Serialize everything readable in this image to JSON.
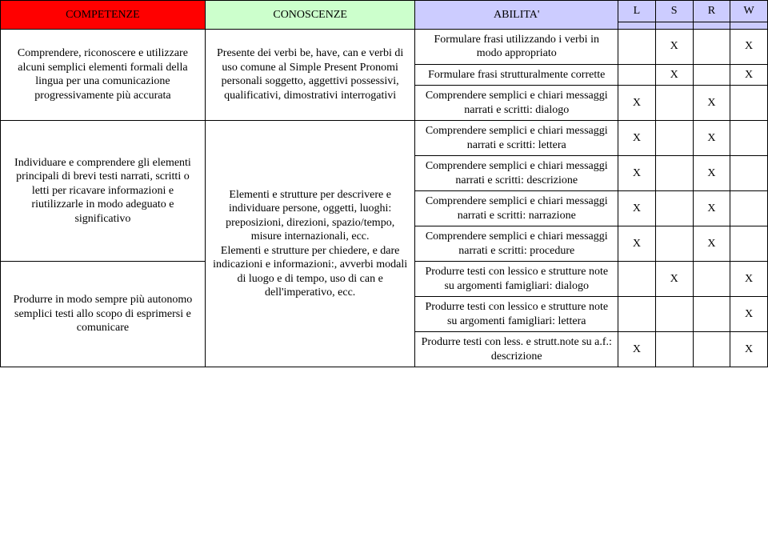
{
  "headers": {
    "competenze": "COMPETENZE",
    "conoscenze": "CONOSCENZE",
    "abilita": "ABILITA'",
    "L": "L",
    "S": "S",
    "R": "R",
    "W": "W"
  },
  "competenze": {
    "c1": "Comprendere, riconoscere e utilizzare alcuni semplici elementi formali della lingua per una comunicazione progressivamente più accurata",
    "c2": "Individuare e comprendere gli elementi principali di brevi testi narrati, scritti o letti per ricavare informazioni e riutilizzarle in modo adeguato e significativo",
    "c3": "Produrre in modo sempre più autonomo semplici testi allo scopo di esprimersi e comunicare"
  },
  "conoscenze": {
    "k1": "Presente dei verbi be, have, can e verbi di uso comune al Simple Present\nPronomi personali soggetto, aggettivi possessivi, qualificativi, dimostrativi interrogativi",
    "k2": "Elementi e strutture per descrivere e individuare persone, oggetti, luoghi: preposizioni, direzioni, spazio/tempo, misure internazionali, ecc.\nElementi e strutture per chiedere, e dare indicazioni e informazioni:, avverbi modali di luogo e di tempo, uso di can e dell'imperativo, ecc.",
    "k2_a": "Elementi e strutture per descrivere e individuare persone, oggetti, luoghi: preposizioni, direzioni, spazio/tempo, misure internazionali, ecc.",
    "k2_b": "Elementi e strutture per chiedere, e dare indicazioni e informazioni:, avverbi modali di luogo e di tempo, uso di can e dell'imperativo, ecc."
  },
  "abilita": {
    "a1": "Formulare frasi utilizzando i verbi in modo appropriato",
    "a2": "Formulare frasi strutturalmente corrette",
    "a3": "Comprendere semplici e chiari messaggi narrati e scritti: dialogo",
    "a4": "Comprendere semplici e chiari messaggi narrati e scritti: lettera",
    "a5": "Comprendere semplici e chiari messaggi narrati e scritti: descrizione",
    "a6": "Comprendere semplici e chiari messaggi narrati e scritti: narrazione",
    "a7": "Comprendere semplici e chiari messaggi narrati e scritti: procedure",
    "a8": "Produrre testi con lessico e strutture note su argomenti famigliari: dialogo",
    "a9": "Produrre testi con lessico e strutture note su argomenti famigliari: lettera",
    "a10": "Produrre testi con less. e strutt.note su a.f.: descrizione"
  },
  "marks": {
    "X": "X",
    "m1": {
      "L": "",
      "S": "X",
      "R": "",
      "W": "X"
    },
    "m2": {
      "L": "",
      "S": "X",
      "R": "",
      "W": "X"
    },
    "m3": {
      "L": "X",
      "S": "",
      "R": "X",
      "W": ""
    },
    "m4": {
      "L": "X",
      "S": "",
      "R": "X",
      "W": ""
    },
    "m5": {
      "L": "X",
      "S": "",
      "R": "X",
      "W": ""
    },
    "m6": {
      "L": "X",
      "S": "",
      "R": "X",
      "W": ""
    },
    "m7": {
      "L": "X",
      "S": "",
      "R": "X",
      "W": ""
    },
    "m8": {
      "L": "",
      "S": "X",
      "R": "",
      "W": "X"
    },
    "m9": {
      "L": "",
      "S": "",
      "R": "",
      "W": "X"
    },
    "m10": {
      "L": "X",
      "S": "",
      "R": "",
      "W": "X"
    }
  },
  "colors": {
    "header_red": "#ff0000",
    "header_green": "#ccffcc",
    "header_purple": "#ccccff",
    "border": "#000000",
    "background": "#ffffff"
  }
}
